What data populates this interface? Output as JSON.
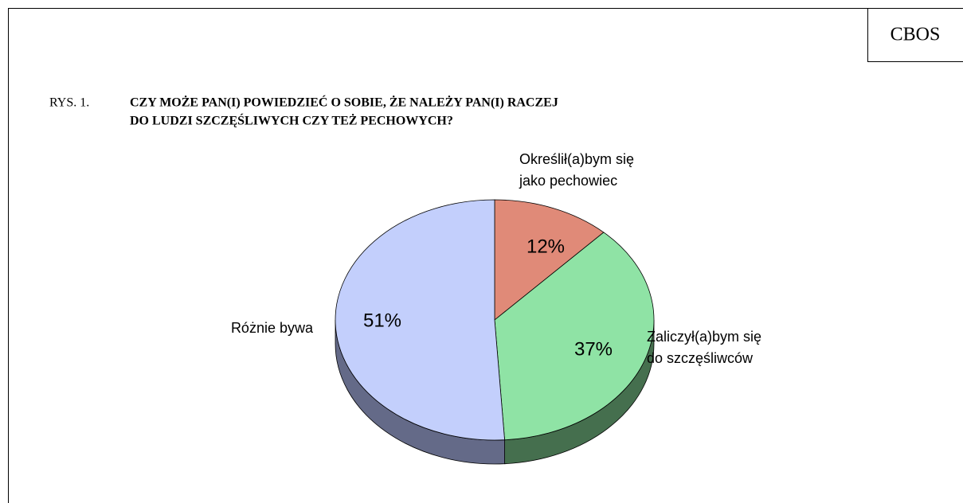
{
  "chart_data": {
    "type": "pie",
    "source": "CBOS",
    "figure_label": "RYS. 1.",
    "title": [
      "CZY MOŻE PAN(I) POWIEDZIEĆ O SOBIE, ŻE NALEŻY PAN(I) RACZEJ",
      "DO LUDZI SZCZĘŚLIWYCH CZY TEŻ PECHOWYCH?"
    ],
    "categories": [
      [
        "Określił(a)bym się",
        "jako pechowiec"
      ],
      [
        "Zaliczył(a)bym się",
        "do szczęśliwców"
      ],
      [
        "Różnie bywa"
      ]
    ],
    "values": [
      12,
      37,
      51
    ],
    "value_labels": [
      "12%",
      "37%",
      "51%"
    ],
    "colors": [
      "#e08a78",
      "#8fe3a5",
      "#c3cffc"
    ],
    "side_colors": [
      "#8f5449",
      "#456f4e",
      "#646a88"
    ],
    "three_d": true
  }
}
